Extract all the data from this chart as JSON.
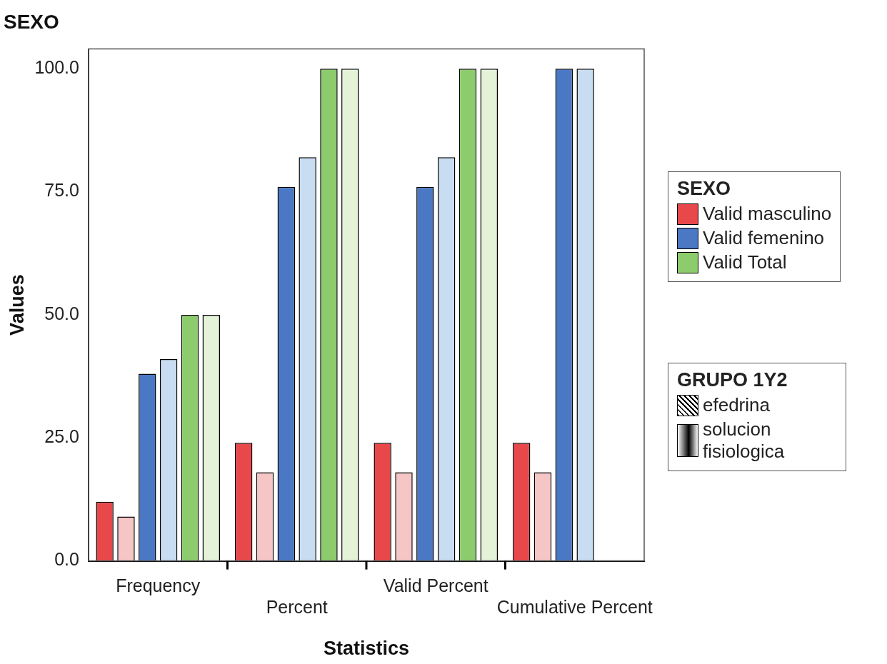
{
  "chart_data": {
    "type": "bar",
    "title": "SEXO",
    "xlabel": "Statistics",
    "ylabel": "Values",
    "legend_title": "SEXO",
    "legend": "right",
    "categories": [
      "Frequency",
      "Percent",
      "Valid Percent",
      "Cumulative Percent"
    ],
    "series": [
      {
        "name": "Valid masculino",
        "color": "#e8484a",
        "values": [
          12,
          24,
          24,
          24
        ]
      },
      {
        "color": "#f6c6c6",
        "values": [
          9,
          18,
          18,
          18
        ]
      },
      {
        "name": "Valid femenino",
        "color": "#4a78c4",
        "values": [
          38,
          76,
          76,
          100
        ]
      },
      {
        "color": "#c8dcf2",
        "values": [
          41,
          82,
          82,
          100
        ]
      },
      {
        "name": "Valid Total",
        "color": "#8ccc6c",
        "values": [
          50,
          100,
          100,
          null
        ]
      },
      {
        "color": "#e4f2d8",
        "values": [
          50,
          100,
          100,
          null
        ]
      }
    ],
    "ylim": [
      0,
      104
    ],
    "yticks": [
      {
        "value": 0,
        "label": "0.0"
      },
      {
        "value": 25,
        "label": "25.0"
      },
      {
        "value": 50,
        "label": "50.0"
      },
      {
        "value": 75,
        "label": "75.0"
      },
      {
        "value": 100,
        "label": "100.0"
      }
    ],
    "annotations": [
      "GRUPO 1Y2",
      "efedrina",
      "solucion fisiologica"
    ]
  }
}
